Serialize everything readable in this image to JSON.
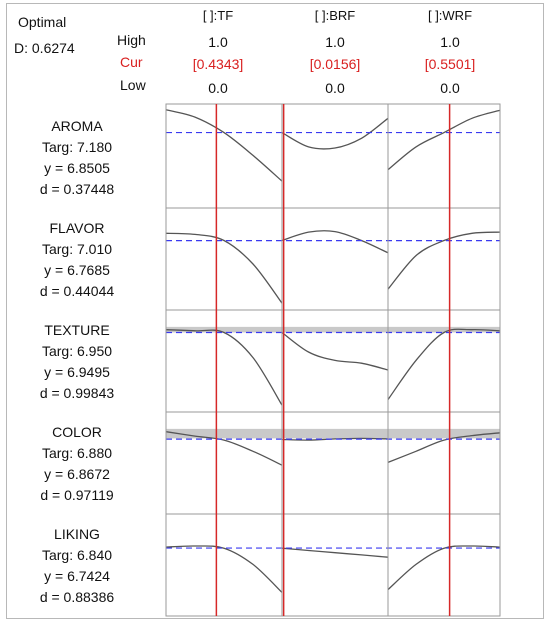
{
  "header": {
    "optimal_label": "Optimal",
    "d_label": "D: 0.6274",
    "high_label": "High",
    "cur_label": "Cur",
    "low_label": "Low"
  },
  "factors": [
    {
      "name": "[ ]:TF",
      "high": "1.0",
      "cur": "[0.4343]",
      "low": "0.0"
    },
    {
      "name": "[ ]:BRF",
      "high": "1.0",
      "cur": "[0.0156]",
      "low": "0.0"
    },
    {
      "name": "[ ]:WRF",
      "high": "1.0",
      "cur": "[0.5501]",
      "low": "0.0"
    }
  ],
  "responses": [
    {
      "name": "AROMA",
      "targ": "Targ: 7.180",
      "y": "y = 6.8505",
      "d": "d = 0.37448"
    },
    {
      "name": "FLAVOR",
      "targ": "Targ: 7.010",
      "y": "y = 6.7685",
      "d": "d = 0.44044"
    },
    {
      "name": "TEXTURE",
      "targ": "Targ: 6.950",
      "y": "y = 6.9495",
      "d": "d = 0.99843"
    },
    {
      "name": "COLOR",
      "targ": "Targ: 6.880",
      "y": "y = 6.8672",
      "d": "d = 0.97119"
    },
    {
      "name": "LIKING",
      "targ": "Targ: 6.840",
      "y": "y = 6.7424",
      "d": "d = 0.88386"
    }
  ],
  "colors": {
    "current_line": "#d62828",
    "fitted_line": "#3a3af0",
    "curve": "#555555",
    "band": "#c9c9c9",
    "grid": "#9a9a9a"
  },
  "chart_data": {
    "type": "line",
    "x_range": [
      0,
      1
    ],
    "current_settings": [
      0.4343,
      0.0156,
      0.5501
    ],
    "panels": [
      {
        "response": "AROMA",
        "y_fitted": 6.8505,
        "band": null,
        "curves": [
          {
            "factor": "[ ]:TF",
            "x": [
              0,
              0.25,
              0.5,
              0.75,
              1.0
            ],
            "y": [
              7.25,
              7.12,
              6.85,
              6.45,
              6.0
            ]
          },
          {
            "factor": "[ ]:BRF",
            "x": [
              0,
              0.25,
              0.5,
              0.75,
              1.0
            ],
            "y": [
              6.85,
              6.6,
              6.58,
              6.75,
              7.1
            ]
          },
          {
            "factor": "[ ]:WRF",
            "x": [
              0,
              0.25,
              0.5,
              0.75,
              1.0
            ],
            "y": [
              6.2,
              6.6,
              6.85,
              7.1,
              7.24
            ]
          }
        ]
      },
      {
        "response": "FLAVOR",
        "y_fitted": 6.7685,
        "band": null,
        "curves": [
          {
            "factor": "[ ]:TF",
            "x": [
              0,
              0.25,
              0.5,
              0.75,
              1.0
            ],
            "y": [
              6.9,
              6.88,
              6.77,
              6.35,
              5.65
            ]
          },
          {
            "factor": "[ ]:BRF",
            "x": [
              0,
              0.25,
              0.5,
              0.75,
              1.0
            ],
            "y": [
              6.77,
              6.92,
              6.93,
              6.77,
              6.55
            ]
          },
          {
            "factor": "[ ]:WRF",
            "x": [
              0,
              0.25,
              0.5,
              0.75,
              1.0
            ],
            "y": [
              5.9,
              6.5,
              6.77,
              6.9,
              6.92
            ]
          }
        ]
      },
      {
        "response": "TEXTURE",
        "y_fitted": 6.9495,
        "band": [
          6.95,
          7.05
        ],
        "curves": [
          {
            "factor": "[ ]:TF",
            "x": [
              0,
              0.25,
              0.5,
              0.75,
              1.0
            ],
            "y": [
              7.0,
              6.98,
              6.95,
              6.5,
              5.65
            ]
          },
          {
            "factor": "[ ]:BRF",
            "x": [
              0,
              0.25,
              0.5,
              0.75,
              1.0
            ],
            "y": [
              6.95,
              6.6,
              6.45,
              6.4,
              6.28
            ]
          },
          {
            "factor": "[ ]:WRF",
            "x": [
              0,
              0.25,
              0.5,
              0.75,
              1.0
            ],
            "y": [
              5.75,
              6.45,
              6.95,
              7.0,
              6.98
            ]
          }
        ]
      },
      {
        "response": "COLOR",
        "y_fitted": 6.8672,
        "band": [
          6.88,
          7.05
        ],
        "curves": [
          {
            "factor": "[ ]:TF",
            "x": [
              0,
              0.25,
              0.5,
              0.75,
              1.0
            ],
            "y": [
              7.0,
              6.92,
              6.85,
              6.65,
              6.4
            ]
          },
          {
            "factor": "[ ]:BRF",
            "x": [
              0,
              0.25,
              0.5,
              0.75,
              1.0
            ],
            "y": [
              6.86,
              6.85,
              6.87,
              6.88,
              6.87
            ]
          },
          {
            "factor": "[ ]:WRF",
            "x": [
              0,
              0.25,
              0.5,
              0.75,
              1.0
            ],
            "y": [
              6.45,
              6.65,
              6.85,
              6.93,
              6.98
            ]
          }
        ]
      },
      {
        "response": "LIKING",
        "y_fitted": 6.7424,
        "band": null,
        "curves": [
          {
            "factor": "[ ]:TF",
            "x": [
              0,
              0.25,
              0.5,
              0.75,
              1.0
            ],
            "y": [
              6.76,
              6.78,
              6.74,
              6.45,
              5.95
            ]
          },
          {
            "factor": "[ ]:BRF",
            "x": [
              0,
              0.25,
              0.5,
              0.75,
              1.0
            ],
            "y": [
              6.74,
              6.7,
              6.66,
              6.62,
              6.58
            ]
          },
          {
            "factor": "[ ]:WRF",
            "x": [
              0,
              0.25,
              0.5,
              0.75,
              1.0
            ],
            "y": [
              6.0,
              6.45,
              6.74,
              6.78,
              6.76
            ]
          }
        ]
      }
    ]
  }
}
